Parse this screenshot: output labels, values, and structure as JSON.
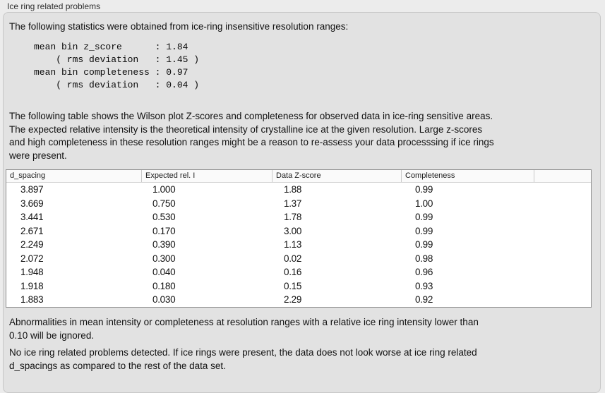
{
  "panel": {
    "title": "Ice ring related problems"
  },
  "intro": "The following statistics were obtained from ice-ring insensitive resolution ranges:",
  "stats_block": "mean bin z_score      : 1.84\n    ( rms deviation   : 1.45 )\nmean bin completeness : 0.97\n    ( rms deviation   : 0.04 )",
  "stats": {
    "mean_bin_z_score": 1.84,
    "mean_bin_z_score_rms_deviation": 1.45,
    "mean_bin_completeness": 0.97,
    "mean_bin_completeness_rms_deviation": 0.04
  },
  "description": "The following table shows the Wilson plot Z-scores and completeness for observed data in ice-ring sensitive areas.\nThe expected relative intensity is the theoretical intensity of crystalline ice at the given resolution. Large z-scores\nand high completeness in these resolution ranges might be a reason to re-assess your data processsing if ice rings\nwere present.",
  "table": {
    "columns": [
      "d_spacing",
      "Expected rel. I",
      "Data Z-score",
      "Completeness",
      ""
    ],
    "rows": [
      [
        "3.897",
        "1.000",
        "1.88",
        "0.99"
      ],
      [
        "3.669",
        "0.750",
        "1.37",
        "1.00"
      ],
      [
        "3.441",
        "0.530",
        "1.78",
        "0.99"
      ],
      [
        "2.671",
        "0.170",
        "3.00",
        "0.99"
      ],
      [
        "2.249",
        "0.390",
        "1.13",
        "0.99"
      ],
      [
        "2.072",
        "0.300",
        "0.02",
        "0.98"
      ],
      [
        "1.948",
        "0.040",
        "0.16",
        "0.96"
      ],
      [
        "1.918",
        "0.180",
        "0.15",
        "0.93"
      ],
      [
        "1.883",
        "0.030",
        "2.29",
        "0.92"
      ]
    ]
  },
  "footnote": "Abnormalities in mean intensity or completeness at resolution ranges with a relative ice ring intensity lower than\n0.10 will be ignored.",
  "conclusion": "No ice ring related problems detected. If ice rings were present, the data does not look worse at ice ring related\nd_spacings as compared to the rest of the data set."
}
